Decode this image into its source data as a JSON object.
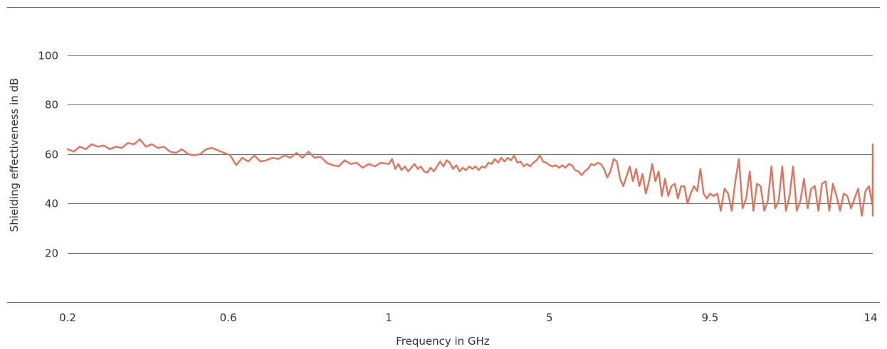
{
  "chart_data": {
    "type": "line",
    "xlabel": "Frequency in GHz",
    "ylabel": "Shielding effectiveness in dB",
    "x_scale": "categorical",
    "x_ticks": [
      "0.2",
      "0.6",
      "1",
      "5",
      "9.5",
      "14"
    ],
    "y_ticks": [
      20,
      40,
      60,
      80,
      100
    ],
    "ylim": [
      0,
      100
    ],
    "grid": "horizontal",
    "legend": "none",
    "colors": {
      "series": "#e0735a",
      "grid": "#6b6b6b",
      "text": "#333333"
    },
    "series": [
      {
        "color": "#e0735a",
        "points": [
          [
            0.2,
            62
          ],
          [
            0.215,
            61
          ],
          [
            0.23,
            63
          ],
          [
            0.245,
            62
          ],
          [
            0.26,
            64
          ],
          [
            0.275,
            63
          ],
          [
            0.29,
            63.5
          ],
          [
            0.305,
            62
          ],
          [
            0.32,
            63
          ],
          [
            0.335,
            62.5
          ],
          [
            0.35,
            64.5
          ],
          [
            0.365,
            64
          ],
          [
            0.38,
            66
          ],
          [
            0.395,
            63
          ],
          [
            0.41,
            64
          ],
          [
            0.425,
            62.5
          ],
          [
            0.44,
            63
          ],
          [
            0.455,
            61
          ],
          [
            0.47,
            60.5
          ],
          [
            0.485,
            62
          ],
          [
            0.5,
            60
          ],
          [
            0.515,
            59.5
          ],
          [
            0.53,
            60
          ],
          [
            0.545,
            62
          ],
          [
            0.56,
            62.5
          ],
          [
            0.575,
            61.5
          ],
          [
            0.59,
            60.5
          ],
          [
            0.605,
            59.5
          ],
          [
            0.62,
            55.5
          ],
          [
            0.635,
            58.5
          ],
          [
            0.65,
            57
          ],
          [
            0.665,
            59.5
          ],
          [
            0.68,
            57
          ],
          [
            0.695,
            57.5
          ],
          [
            0.71,
            58.5
          ],
          [
            0.725,
            58
          ],
          [
            0.74,
            59.5
          ],
          [
            0.755,
            58.5
          ],
          [
            0.77,
            60.5
          ],
          [
            0.785,
            58.5
          ],
          [
            0.8,
            61
          ],
          [
            0.815,
            58.5
          ],
          [
            0.83,
            59
          ],
          [
            0.845,
            56.5
          ],
          [
            0.86,
            55.5
          ],
          [
            0.875,
            55
          ],
          [
            0.89,
            57.5
          ],
          [
            0.905,
            56
          ],
          [
            0.92,
            56.5
          ],
          [
            0.935,
            54.5
          ],
          [
            0.95,
            56
          ],
          [
            0.965,
            55
          ],
          [
            0.98,
            56.5
          ],
          [
            1.0,
            56
          ],
          [
            1.04,
            58
          ],
          [
            1.08,
            54
          ],
          [
            1.12,
            56
          ],
          [
            1.16,
            53.5
          ],
          [
            1.2,
            55
          ],
          [
            1.24,
            53
          ],
          [
            1.28,
            54.5
          ],
          [
            1.32,
            56
          ],
          [
            1.36,
            54
          ],
          [
            1.4,
            55
          ],
          [
            1.44,
            53
          ],
          [
            1.48,
            52.5
          ],
          [
            1.52,
            54.5
          ],
          [
            1.56,
            53
          ],
          [
            1.6,
            55
          ],
          [
            1.64,
            57
          ],
          [
            1.68,
            55
          ],
          [
            1.72,
            57.5
          ],
          [
            1.76,
            56.5
          ],
          [
            1.8,
            54
          ],
          [
            1.84,
            55.5
          ],
          [
            1.88,
            53
          ],
          [
            1.92,
            54.5
          ],
          [
            1.96,
            53.5
          ],
          [
            2.0,
            55
          ],
          [
            2.04,
            54
          ],
          [
            2.08,
            55
          ],
          [
            2.12,
            53.5
          ],
          [
            2.16,
            55
          ],
          [
            2.2,
            54.5
          ],
          [
            2.24,
            56.5
          ],
          [
            2.28,
            56
          ],
          [
            2.32,
            58
          ],
          [
            2.36,
            56.5
          ],
          [
            2.4,
            58.5
          ],
          [
            2.44,
            57
          ],
          [
            2.48,
            58.5
          ],
          [
            2.52,
            57.5
          ],
          [
            2.56,
            59.5
          ],
          [
            2.6,
            56.5
          ],
          [
            2.64,
            57
          ],
          [
            2.68,
            55
          ],
          [
            2.72,
            56
          ],
          [
            2.76,
            55
          ],
          [
            2.8,
            56.5
          ],
          [
            2.84,
            57.5
          ],
          [
            2.88,
            59.5
          ],
          [
            2.92,
            57
          ],
          [
            2.96,
            56.5
          ],
          [
            3.0,
            55.5
          ],
          [
            3.04,
            55
          ],
          [
            3.08,
            55.5
          ],
          [
            3.12,
            54.5
          ],
          [
            3.16,
            55.5
          ],
          [
            3.2,
            54.5
          ],
          [
            3.24,
            56
          ],
          [
            3.28,
            55.5
          ],
          [
            3.32,
            53.5
          ],
          [
            3.36,
            53
          ],
          [
            3.4,
            51.5
          ],
          [
            3.44,
            53
          ],
          [
            3.48,
            54
          ],
          [
            3.52,
            56
          ],
          [
            3.56,
            55.5
          ],
          [
            3.6,
            56.5
          ],
          [
            3.64,
            56
          ],
          [
            3.68,
            54
          ],
          [
            3.72,
            50.5
          ],
          [
            3.76,
            53
          ],
          [
            3.8,
            58
          ],
          [
            3.84,
            57
          ],
          [
            3.88,
            50
          ],
          [
            3.92,
            47
          ],
          [
            3.96,
            51
          ],
          [
            4.0,
            55
          ],
          [
            4.04,
            49
          ],
          [
            4.08,
            54
          ],
          [
            4.12,
            47
          ],
          [
            4.16,
            52
          ],
          [
            4.2,
            44
          ],
          [
            4.24,
            49
          ],
          [
            4.28,
            56
          ],
          [
            4.32,
            49
          ],
          [
            4.36,
            53
          ],
          [
            4.4,
            43
          ],
          [
            4.44,
            50
          ],
          [
            4.48,
            43
          ],
          [
            4.52,
            47
          ],
          [
            4.56,
            48
          ],
          [
            4.6,
            42
          ],
          [
            4.64,
            47
          ],
          [
            4.68,
            47
          ],
          [
            4.72,
            40
          ],
          [
            4.76,
            44
          ],
          [
            4.8,
            47
          ],
          [
            4.84,
            45
          ],
          [
            4.88,
            54
          ],
          [
            4.92,
            44
          ],
          [
            4.96,
            42
          ],
          [
            5.0,
            44
          ],
          [
            5.045,
            43
          ],
          [
            5.09,
            44
          ],
          [
            5.135,
            37
          ],
          [
            5.18,
            46
          ],
          [
            5.225,
            44
          ],
          [
            5.27,
            37
          ],
          [
            5.315,
            49
          ],
          [
            5.36,
            58
          ],
          [
            5.405,
            38
          ],
          [
            5.45,
            42
          ],
          [
            5.495,
            53
          ],
          [
            5.54,
            37
          ],
          [
            5.585,
            48
          ],
          [
            5.63,
            47
          ],
          [
            5.675,
            37
          ],
          [
            5.72,
            41
          ],
          [
            5.765,
            55
          ],
          [
            5.81,
            38
          ],
          [
            5.855,
            41
          ],
          [
            5.9,
            55
          ],
          [
            5.945,
            37
          ],
          [
            5.99,
            43
          ],
          [
            6.035,
            55
          ],
          [
            6.08,
            37
          ],
          [
            6.125,
            41
          ],
          [
            6.17,
            50
          ],
          [
            6.215,
            38
          ],
          [
            6.26,
            46
          ],
          [
            6.305,
            47
          ],
          [
            6.35,
            37
          ],
          [
            6.395,
            48
          ],
          [
            6.44,
            49
          ],
          [
            6.485,
            37
          ],
          [
            6.53,
            48
          ],
          [
            6.575,
            43
          ],
          [
            6.62,
            37
          ],
          [
            6.665,
            44
          ],
          [
            6.71,
            43
          ],
          [
            6.755,
            38
          ],
          [
            6.8,
            42
          ],
          [
            6.845,
            46
          ],
          [
            6.89,
            35
          ],
          [
            6.935,
            45
          ],
          [
            6.98,
            47
          ],
          [
            7.025,
            39
          ],
          [
            7.07,
            64
          ],
          [
            7.115,
            36
          ],
          [
            7.16,
            38
          ],
          [
            7.205,
            49
          ],
          [
            7.25,
            36
          ],
          [
            7.295,
            45
          ],
          [
            7.34,
            49
          ],
          [
            7.385,
            38
          ],
          [
            7.43,
            38
          ],
          [
            7.475,
            43
          ],
          [
            7.52,
            37
          ],
          [
            7.565,
            38
          ],
          [
            7.61,
            42
          ],
          [
            7.655,
            36
          ],
          [
            7.7,
            40
          ],
          [
            7.75,
            37
          ],
          [
            7.8,
            45
          ],
          [
            7.85,
            38
          ],
          [
            7.9,
            37
          ],
          [
            7.95,
            41
          ],
          [
            8.0,
            39
          ],
          [
            8.05,
            43
          ],
          [
            8.1,
            40
          ],
          [
            8.15,
            47
          ],
          [
            8.2,
            40
          ],
          [
            8.25,
            42
          ],
          [
            8.3,
            52
          ],
          [
            8.35,
            40
          ],
          [
            8.4,
            45
          ],
          [
            8.45,
            40
          ],
          [
            8.5,
            41
          ],
          [
            8.55,
            39
          ],
          [
            8.6,
            38
          ],
          [
            8.65,
            38
          ],
          [
            8.7,
            40
          ],
          [
            8.75,
            43
          ],
          [
            8.8,
            42
          ],
          [
            8.85,
            39
          ],
          [
            8.9,
            38
          ],
          [
            8.95,
            39
          ],
          [
            9.0,
            37
          ],
          [
            9.05,
            39
          ],
          [
            9.1,
            37
          ],
          [
            9.15,
            38
          ],
          [
            9.2,
            42
          ],
          [
            9.25,
            40
          ],
          [
            9.3,
            42
          ],
          [
            9.35,
            51
          ],
          [
            9.4,
            39
          ],
          [
            9.45,
            43
          ],
          [
            9.5,
            38
          ],
          [
            9.55,
            38
          ],
          [
            9.6,
            37
          ],
          [
            9.65,
            38
          ],
          [
            9.7,
            36
          ],
          [
            9.75,
            35
          ],
          [
            9.8,
            41
          ]
        ]
      }
    ]
  }
}
